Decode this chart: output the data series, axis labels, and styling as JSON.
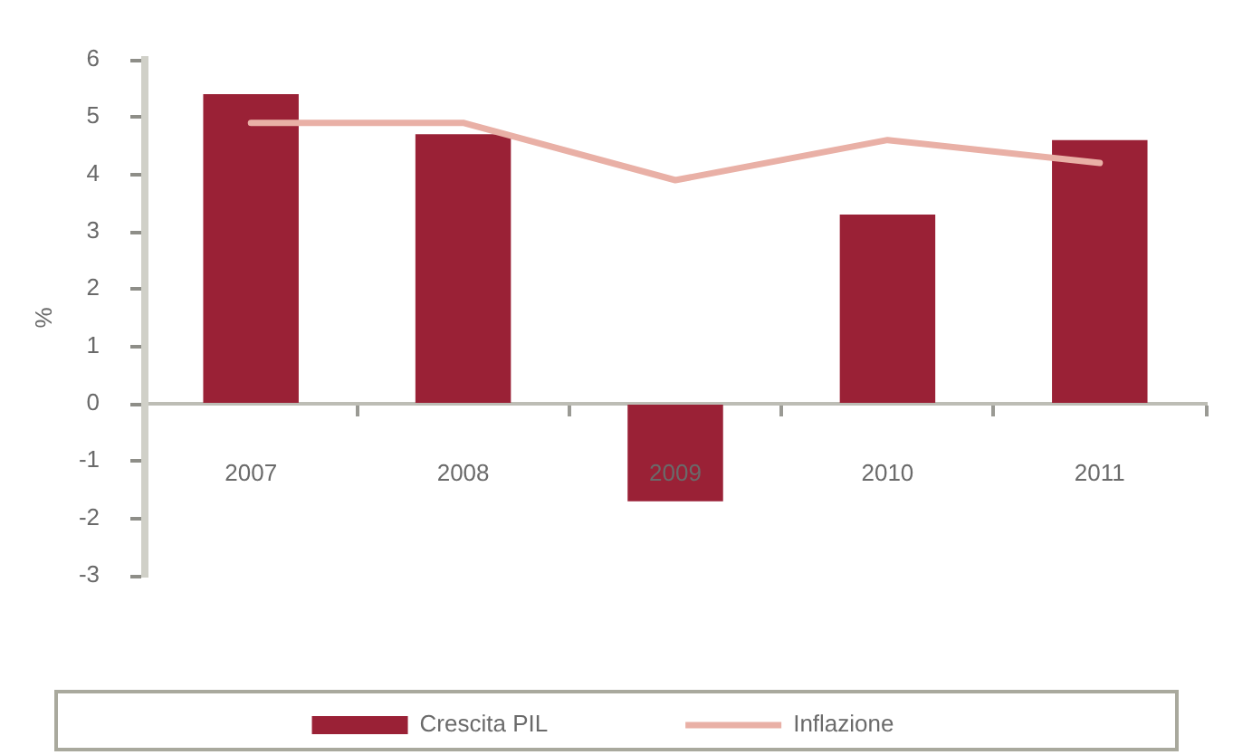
{
  "chart_data": {
    "type": "bar",
    "categories": [
      "2007",
      "2008",
      "2009",
      "2010",
      "2011"
    ],
    "series": [
      {
        "name": "Crescita PIL",
        "color": "#9a2136",
        "values": [
          5.4,
          4.7,
          -1.7,
          3.3,
          4.6
        ]
      },
      {
        "name": "Inflazione",
        "type": "line",
        "color": "#e9b0a6",
        "values": [
          4.9,
          4.9,
          3.9,
          4.6,
          4.2
        ]
      }
    ],
    "ylabel": "%",
    "ylim": [
      -3,
      6
    ],
    "yticks": [
      -3,
      -2,
      -1,
      0,
      1,
      2,
      3,
      4,
      5,
      6
    ],
    "legend": "bottom"
  }
}
